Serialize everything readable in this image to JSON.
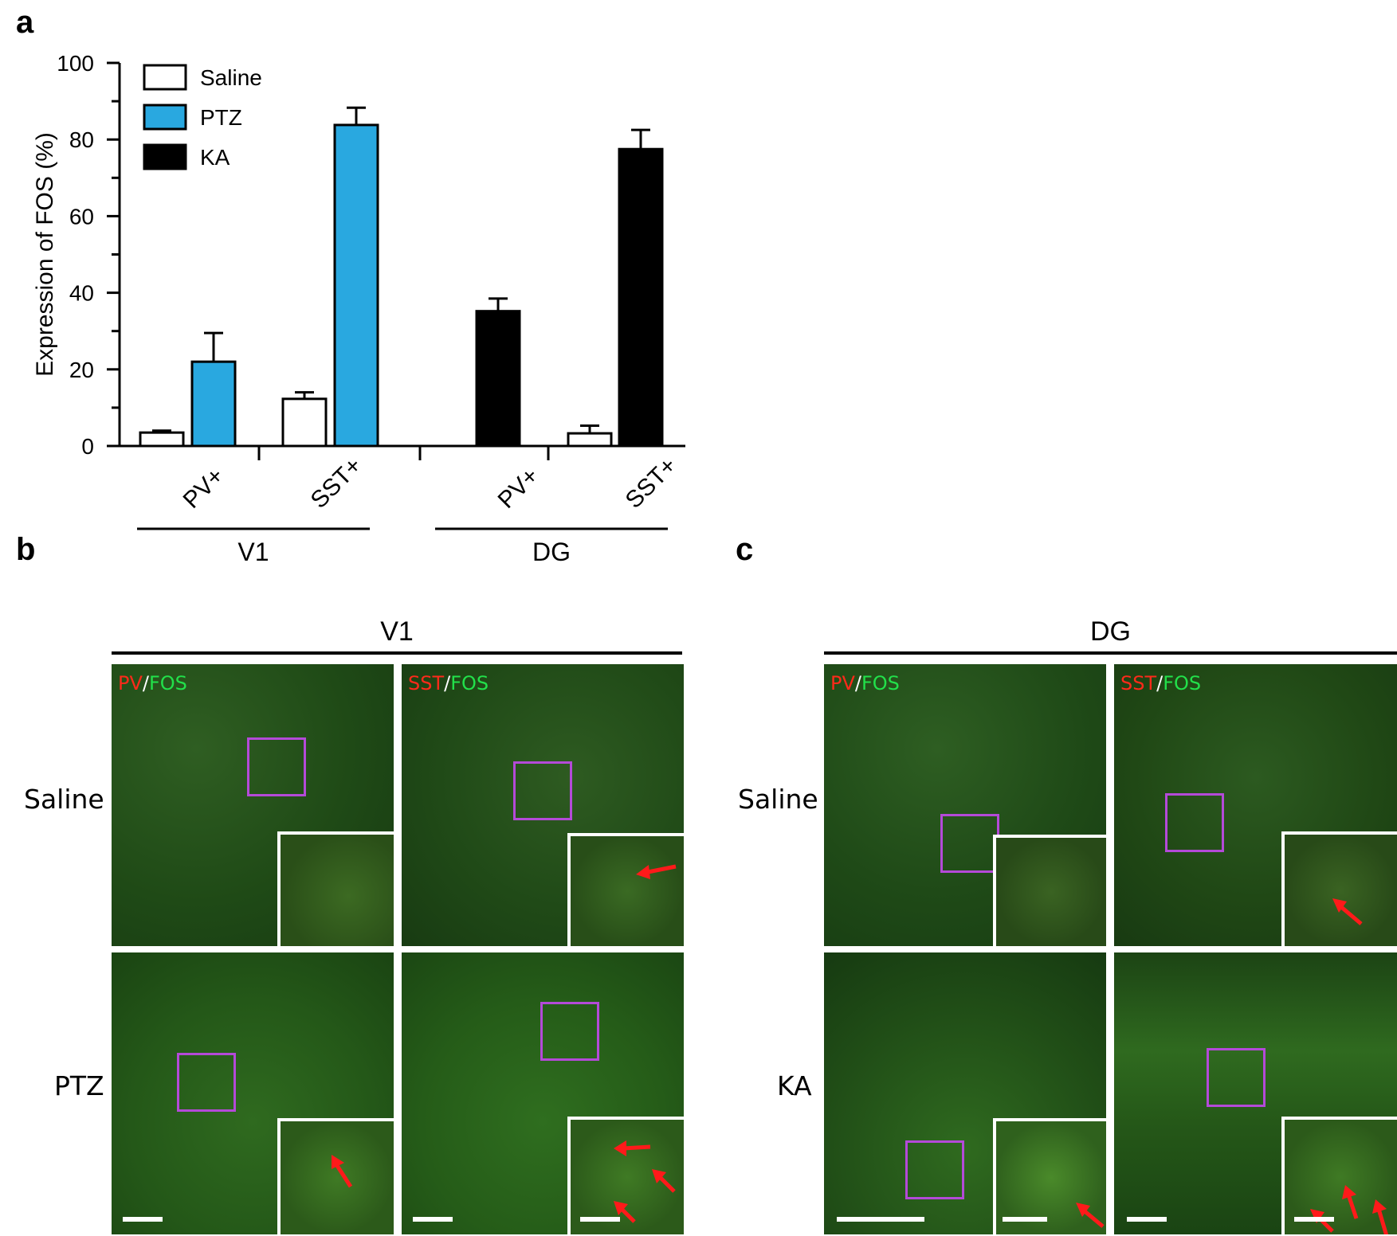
{
  "panels": {
    "a": "a",
    "b": "b",
    "c": "c"
  },
  "chart_data": {
    "type": "bar",
    "ylabel": "Expression of FOS (%)",
    "ylim": [
      0,
      100
    ],
    "yticks": [
      "0",
      "20",
      "40",
      "60",
      "80",
      "100"
    ],
    "legend": {
      "placement": "top-left",
      "entries": [
        "Saline",
        "PTZ",
        "KA"
      ]
    },
    "colors": {
      "Saline": "#ffffff",
      "PTZ": "#29a8e0",
      "KA": "#000000"
    },
    "categories": [
      "PV+",
      "SST+",
      "PV+",
      "SST+"
    ],
    "groups": [
      {
        "label": "V1",
        "categories": [
          "PV+",
          "SST+"
        ]
      },
      {
        "label": "DG",
        "categories": [
          "PV+",
          "SST+"
        ]
      }
    ],
    "bars": [
      {
        "category_index": 0,
        "series": "Saline",
        "value": 3.5,
        "error": 0.5
      },
      {
        "category_index": 0,
        "series": "PTZ",
        "value": 22,
        "error": 7.5
      },
      {
        "category_index": 1,
        "series": "Saline",
        "value": 12.3,
        "error": 1.7
      },
      {
        "category_index": 1,
        "series": "PTZ",
        "value": 83.8,
        "error": 4.5
      },
      {
        "category_index": 2,
        "series": "KA",
        "value": 35.2,
        "error": 3.3
      },
      {
        "category_index": 3,
        "series": "Saline",
        "value": 3.3,
        "error": 2.0
      },
      {
        "category_index": 3,
        "series": "KA",
        "value": 77.5,
        "error": 5.0
      }
    ]
  },
  "panel_b": {
    "header": "V1",
    "rows": [
      "Saline",
      "PTZ"
    ],
    "stains": [
      {
        "marker": "PV",
        "slash": "/",
        "fos": "FOS"
      },
      {
        "marker": "SST",
        "slash": "/",
        "fos": "FOS"
      }
    ]
  },
  "panel_c": {
    "header": "DG",
    "rows": [
      "Saline",
      "KA"
    ],
    "stains": [
      {
        "marker": "PV",
        "slash": "/",
        "fos": "FOS"
      },
      {
        "marker": "SST",
        "slash": "/",
        "fos": "FOS"
      }
    ]
  }
}
